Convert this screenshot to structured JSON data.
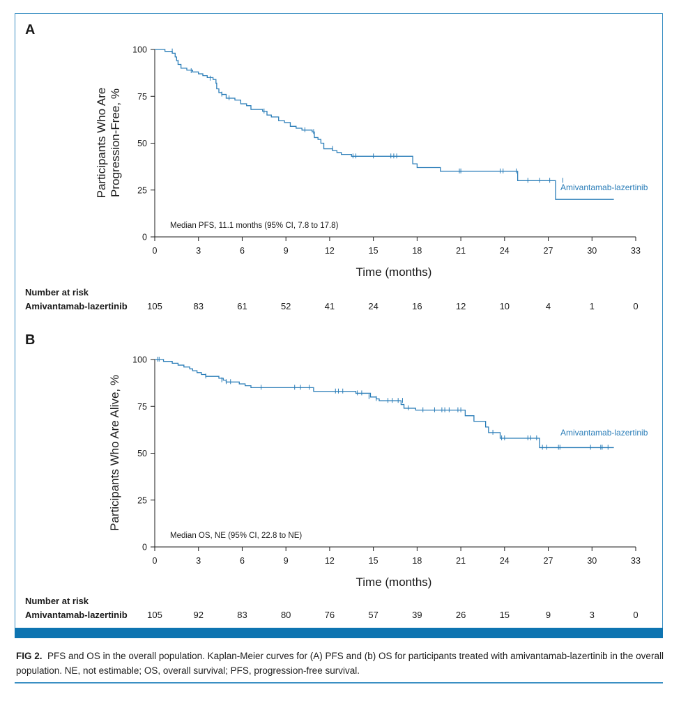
{
  "colors": {
    "curve": "#2a7db8",
    "frame": "#3a8fc3",
    "bar": "#0e74b1",
    "text": "#1a1a1a"
  },
  "caption": {
    "label": "FIG 2.",
    "text": "PFS and OS in the overall population. Kaplan-Meier curves for (A) PFS and (b) OS for participants treated with amivantamab-lazertinib in the overall population. NE, not estimable; OS, overall survival; PFS, progression-free survival."
  },
  "chart_data": [
    {
      "type": "line",
      "panel_letter": "A",
      "ylabel_line1": "Participants Who Are",
      "ylabel_line2": "Progression-Free, %",
      "xlabel": "Time (months)",
      "xlim": [
        0,
        33
      ],
      "ylim": [
        0,
        100
      ],
      "x_ticks": [
        "0",
        "3",
        "6",
        "9",
        "12",
        "15",
        "18",
        "21",
        "24",
        "27",
        "30",
        "33"
      ],
      "y_ticks": [
        "0",
        "25",
        "50",
        "75",
        "100"
      ],
      "median_text": "Median PFS, 11.1 months (95% CI, 7.8 to 17.8)",
      "series": [
        {
          "name": "Amivantamab-lazertinib",
          "steps": [
            [
              0,
              100
            ],
            [
              0.7,
              99
            ],
            [
              1.2,
              98
            ],
            [
              1.4,
              96
            ],
            [
              1.5,
              94
            ],
            [
              1.6,
              92
            ],
            [
              1.8,
              90
            ],
            [
              2.2,
              89
            ],
            [
              2.6,
              88
            ],
            [
              3.0,
              87
            ],
            [
              3.3,
              86
            ],
            [
              3.6,
              85
            ],
            [
              4.0,
              84
            ],
            [
              4.2,
              82
            ],
            [
              4.25,
              79
            ],
            [
              4.4,
              77
            ],
            [
              4.6,
              76
            ],
            [
              4.9,
              74
            ],
            [
              5.5,
              73
            ],
            [
              5.9,
              71
            ],
            [
              6.3,
              70
            ],
            [
              6.6,
              68
            ],
            [
              7.4,
              67
            ],
            [
              7.7,
              65
            ],
            [
              8.0,
              64
            ],
            [
              8.5,
              62
            ],
            [
              8.9,
              61
            ],
            [
              9.3,
              59
            ],
            [
              9.7,
              58
            ],
            [
              10.1,
              57
            ],
            [
              10.8,
              56
            ],
            [
              10.95,
              53
            ],
            [
              11.2,
              52
            ],
            [
              11.4,
              50
            ],
            [
              11.6,
              47
            ],
            [
              12.2,
              46
            ],
            [
              12.5,
              45
            ],
            [
              12.8,
              44
            ],
            [
              13.5,
              43
            ],
            [
              17.7,
              39
            ],
            [
              18.0,
              37
            ],
            [
              19.6,
              35
            ],
            [
              24.9,
              30
            ],
            [
              27.5,
              20
            ],
            [
              31.5,
              20
            ]
          ],
          "censored": [
            [
              1.2,
              99
            ],
            [
              1.6,
              93
            ],
            [
              2.5,
              88.5
            ],
            [
              3.8,
              84.5
            ],
            [
              4.6,
              76
            ],
            [
              5.1,
              74
            ],
            [
              7.5,
              67
            ],
            [
              10.3,
              57
            ],
            [
              10.9,
              56
            ],
            [
              12.2,
              47
            ],
            [
              13.6,
              43
            ],
            [
              13.8,
              43
            ],
            [
              15.0,
              43
            ],
            [
              16.2,
              43
            ],
            [
              16.4,
              43
            ],
            [
              16.6,
              43
            ],
            [
              20.9,
              35
            ],
            [
              21.0,
              35
            ],
            [
              23.7,
              35
            ],
            [
              23.9,
              35
            ],
            [
              24.8,
              35
            ],
            [
              25.6,
              30
            ],
            [
              26.4,
              30
            ],
            [
              27.1,
              30
            ],
            [
              28.0,
              30
            ]
          ]
        }
      ],
      "risk_table": {
        "title": "Number at risk",
        "row_label": "Amivantamab-lazertinib",
        "values": [
          "105",
          "83",
          "61",
          "52",
          "41",
          "24",
          "16",
          "12",
          "10",
          "4",
          "1",
          "0"
        ]
      }
    },
    {
      "type": "line",
      "panel_letter": "B",
      "ylabel_line1": "Participants Who Are Alive, %",
      "ylabel_line2": "",
      "xlabel": "Time (months)",
      "xlim": [
        0,
        33
      ],
      "ylim": [
        0,
        100
      ],
      "x_ticks": [
        "0",
        "3",
        "6",
        "9",
        "12",
        "15",
        "18",
        "21",
        "24",
        "27",
        "30",
        "33"
      ],
      "y_ticks": [
        "0",
        "25",
        "50",
        "75",
        "100"
      ],
      "median_text": "Median OS, NE (95% CI, 22.8 to NE)",
      "series": [
        {
          "name": "Amivantamab-lazertinib",
          "steps": [
            [
              0,
              100
            ],
            [
              0.6,
              99
            ],
            [
              1.2,
              98
            ],
            [
              1.6,
              97
            ],
            [
              2.0,
              96
            ],
            [
              2.4,
              95
            ],
            [
              2.6,
              94
            ],
            [
              2.9,
              93
            ],
            [
              3.2,
              92
            ],
            [
              3.5,
              91
            ],
            [
              4.4,
              90
            ],
            [
              4.7,
              89
            ],
            [
              4.9,
              88
            ],
            [
              5.8,
              87
            ],
            [
              6.2,
              86
            ],
            [
              6.6,
              85
            ],
            [
              10.9,
              83
            ],
            [
              13.8,
              82
            ],
            [
              14.8,
              80
            ],
            [
              15.2,
              79
            ],
            [
              15.4,
              78
            ],
            [
              16.9,
              76
            ],
            [
              17.1,
              74
            ],
            [
              17.9,
              73
            ],
            [
              21.3,
              70
            ],
            [
              21.9,
              67
            ],
            [
              22.7,
              64
            ],
            [
              22.9,
              61
            ],
            [
              23.7,
              58
            ],
            [
              26.4,
              53
            ],
            [
              31.5,
              53
            ]
          ],
          "censored": [
            [
              0.2,
              100
            ],
            [
              0.3,
              100
            ],
            [
              3.5,
              91
            ],
            [
              4.6,
              89
            ],
            [
              4.9,
              88
            ],
            [
              5.2,
              88
            ],
            [
              7.3,
              85
            ],
            [
              9.6,
              85
            ],
            [
              10.0,
              85
            ],
            [
              10.6,
              85
            ],
            [
              12.4,
              83
            ],
            [
              12.6,
              83
            ],
            [
              12.9,
              83
            ],
            [
              13.9,
              82
            ],
            [
              14.2,
              82
            ],
            [
              14.7,
              80
            ],
            [
              15.2,
              79
            ],
            [
              16.0,
              78
            ],
            [
              16.3,
              78
            ],
            [
              16.7,
              78
            ],
            [
              17.0,
              78
            ],
            [
              17.4,
              74
            ],
            [
              18.4,
              73
            ],
            [
              19.2,
              73
            ],
            [
              19.7,
              73
            ],
            [
              19.9,
              73
            ],
            [
              20.2,
              73
            ],
            [
              20.8,
              73
            ],
            [
              21.0,
              73
            ],
            [
              23.2,
              61
            ],
            [
              23.8,
              58
            ],
            [
              24.0,
              58
            ],
            [
              25.6,
              58
            ],
            [
              25.8,
              58
            ],
            [
              26.2,
              58
            ],
            [
              26.6,
              53
            ],
            [
              26.9,
              53
            ],
            [
              27.7,
              53
            ],
            [
              27.8,
              53
            ],
            [
              29.9,
              53
            ],
            [
              30.6,
              53
            ],
            [
              30.7,
              53
            ],
            [
              31.1,
              53
            ]
          ]
        }
      ],
      "risk_table": {
        "title": "Number at risk",
        "row_label": "Amivantamab-lazertinib",
        "values": [
          "105",
          "92",
          "83",
          "80",
          "76",
          "57",
          "39",
          "26",
          "15",
          "9",
          "3",
          "0"
        ]
      }
    }
  ]
}
